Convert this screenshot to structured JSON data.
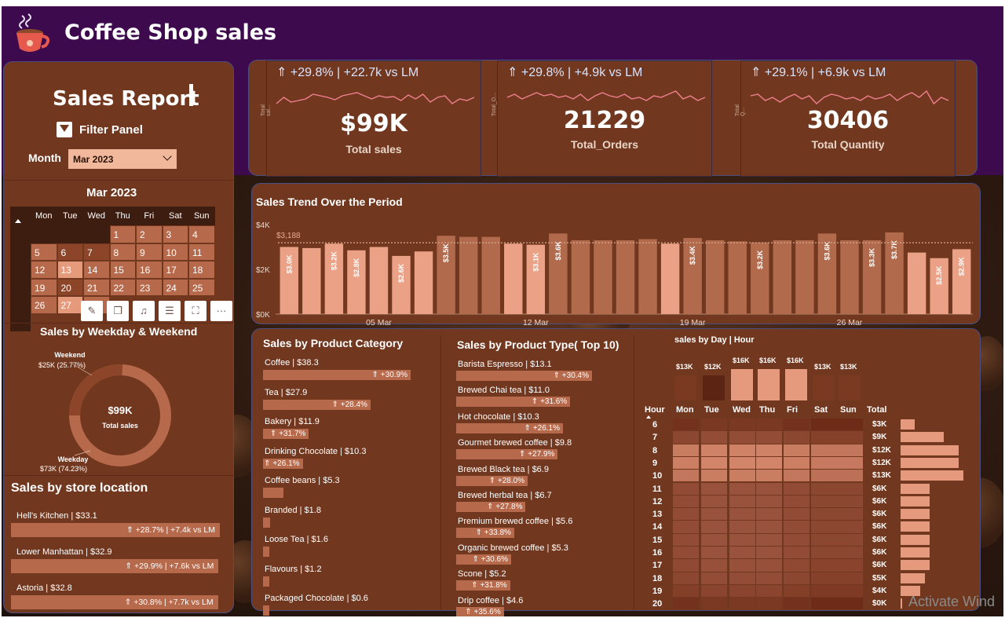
{
  "header": {
    "title": "Coffee Shop sales",
    "logo_icon": "coffee-cup-icon"
  },
  "left": {
    "report_title": "Sales Report",
    "filter_panel_label": "Filter Panel",
    "month_label": "Month",
    "month_value": "Mar 2023",
    "calendar_title": "Mar 2023",
    "weekdays": [
      "Mon",
      "Tue",
      "Wed",
      "Thu",
      "Fri",
      "Sat",
      "Sun"
    ],
    "days": [
      1,
      2,
      3,
      4,
      5,
      6,
      7,
      8,
      9,
      10,
      11,
      12,
      13,
      14,
      15,
      16,
      17,
      18,
      19,
      20,
      21,
      22,
      23,
      24,
      25,
      26,
      27,
      28
    ],
    "toolbar_icons": [
      "pin-icon",
      "copy-icon",
      "bell-icon",
      "filter-icon",
      "focus-mode-icon",
      "more-options-icon"
    ],
    "more_label": "···"
  },
  "weekday_chart": {
    "title": "Sales by Weekday & Weekend",
    "center_value": "$99K",
    "center_label": "Total sales",
    "weekend_label": "Weekend",
    "weekend_value": "$25K (25.77%)",
    "weekday_label": "Weekday",
    "weekday_value": "$73K (74.23%)"
  },
  "store": {
    "title": "Sales by store location",
    "items": [
      {
        "label": "Hell's Kitchen | $33.1",
        "change": "⇑ +28.7% | +7.4k vs LM",
        "value": 33.1
      },
      {
        "label": "Lower Manhattan | $32.9",
        "change": "⇑ +29.9% | +7.6k vs LM",
        "value": 32.9
      },
      {
        "label": "Astoria | $32.8",
        "change": "⇑ +30.8% | +7.7k vs LM",
        "value": 32.8
      }
    ]
  },
  "kpis": [
    {
      "change": "⇑ +29.8% | +22.7k vs LM",
      "value": "$99K",
      "label": "Total sales",
      "side": "Total sal..."
    },
    {
      "change": "⇑ +29.8% | +4.9k vs LM",
      "value": "21229",
      "label": "Total_Orders",
      "side": "Total_O..."
    },
    {
      "change": "⇑ +29.1% | +6.9k vs LM",
      "value": "30406",
      "label": "Total Quantity",
      "side": "Total Q..."
    }
  ],
  "chart_data": [
    {
      "type": "bar",
      "title": "Sales Trend Over the Period",
      "average_label": "$3,188",
      "average": 3188,
      "ylim": [
        0,
        4000
      ],
      "yticks": [
        "$4K",
        "$2K",
        "$0K"
      ],
      "xticks": [
        "05 Mar",
        "12 Mar",
        "19 Mar",
        "26 Mar"
      ],
      "x": [
        1,
        2,
        3,
        4,
        5,
        6,
        7,
        8,
        9,
        10,
        11,
        12,
        13,
        14,
        15,
        16,
        17,
        18,
        19,
        20,
        21,
        22,
        23,
        24,
        25,
        26,
        27,
        28,
        29,
        30,
        31
      ],
      "values": [
        3000,
        2950,
        3150,
        2850,
        3000,
        2600,
        2800,
        3500,
        3450,
        3450,
        3150,
        3100,
        3600,
        3300,
        3300,
        3300,
        3350,
        3150,
        3400,
        3300,
        3250,
        3200,
        3300,
        3300,
        3600,
        3300,
        3300,
        3650,
        2750,
        2500,
        2900
      ],
      "bar_labels": [
        "$3.0K",
        "",
        "$3.2K",
        "$2.8K",
        "",
        "$2.6K",
        "",
        "$3.5K",
        "",
        "",
        "",
        "$3.1K",
        "$3.6K",
        "",
        "",
        "",
        "",
        "",
        "$3.4K",
        "",
        "",
        "$3.2K",
        "",
        "",
        "$3.6K",
        "",
        "$3.3K",
        "$3.7K",
        "",
        "$2.5K",
        "$2.9K"
      ],
      "colors": {
        "above": "#b26a4c",
        "below": "#eba185",
        "average_line": "#d7a890"
      }
    },
    {
      "type": "bar",
      "title": "Sales by Product Category",
      "orientation": "horizontal",
      "categories": [
        "Coffee",
        "Tea",
        "Bakery",
        "Drinking Chocolate",
        "Coffee beans",
        "Branded",
        "Loose Tea",
        "Flavours",
        "Packaged Chocolate"
      ],
      "values": [
        38.3,
        27.9,
        11.9,
        10.3,
        5.3,
        1.8,
        1.6,
        1.2,
        0.6
      ],
      "labels": [
        "Coffee | $38.3",
        "Tea | $27.9",
        "Bakery | $11.9",
        "Drinking Chocolate | $10.3",
        "Coffee beans | $5.3",
        "Branded | $1.8",
        "Loose Tea | $1.6",
        "Flavours | $1.2",
        "Packaged Chocolate | $0.6"
      ],
      "changes": [
        "⇑ +30.9%",
        "⇑ +28.4%",
        "⇑ +31.7%",
        "⇑ +26.1%",
        "",
        "",
        "",
        "",
        ""
      ]
    },
    {
      "type": "bar",
      "title": "Sales by Product Type( Top 10)",
      "orientation": "horizontal",
      "categories": [
        "Barista Espresso",
        "Brewed Chai tea",
        "Hot chocolate",
        "Gourmet brewed coffee",
        "Brewed Black tea",
        "Brewed herbal tea",
        "Premium brewed coffee",
        "Organic brewed coffee",
        "Scone",
        "Drip coffee"
      ],
      "values": [
        13.1,
        11.0,
        10.3,
        9.8,
        6.9,
        6.7,
        5.6,
        5.3,
        5.2,
        4.6
      ],
      "labels": [
        "Barista Espresso | $13.1",
        "Brewed Chai tea | $11.0",
        "Hot chocolate | $10.3",
        "Gourmet brewed coffee | $9.8",
        "Brewed Black tea | $6.9",
        "Brewed herbal tea | $6.7",
        "Premium brewed coffee | $5.6",
        "Organic brewed coffee | $5.3",
        "Scone | $5.2",
        "Drip coffee | $4.6"
      ],
      "changes": [
        "⇑ +30.4%",
        "⇑ +31.6%",
        "⇑ +26.1%",
        "⇑ +27.9%",
        "⇑ +28.0%",
        "⇑ +27.8%",
        "⇑ +33.8%",
        "⇑ +30.6%",
        "⇑ +31.8%",
        "⇑ +35.6%"
      ]
    },
    {
      "type": "heatmap",
      "title": "sales by Day | Hour",
      "day_totals": {
        "labels": [
          "$13K",
          "$12K",
          "$16K",
          "$16K",
          "$16K",
          "$13K",
          "$13K"
        ],
        "values": [
          13,
          12,
          16,
          16,
          16,
          13,
          13
        ]
      },
      "columns": [
        "Mon",
        "Tue",
        "Wed",
        "Thu",
        "Fri",
        "Sat",
        "Sun"
      ],
      "hour_header": "Hour",
      "total_header": "Total",
      "hours": [
        6,
        7,
        8,
        9,
        10,
        11,
        12,
        13,
        14,
        15,
        16,
        17,
        18,
        19,
        20
      ],
      "hour_totals": {
        "labels": [
          "$3K",
          "$9K",
          "$12K",
          "$12K",
          "$13K",
          "$6K",
          "$6K",
          "$6K",
          "$6K",
          "$6K",
          "$6K",
          "$6K",
          "$5K",
          "$4K",
          "$0K"
        ],
        "values": [
          3,
          9,
          12,
          12,
          13,
          6,
          6,
          6,
          6,
          6,
          6,
          6,
          5,
          4,
          0.3
        ]
      }
    }
  ]
}
